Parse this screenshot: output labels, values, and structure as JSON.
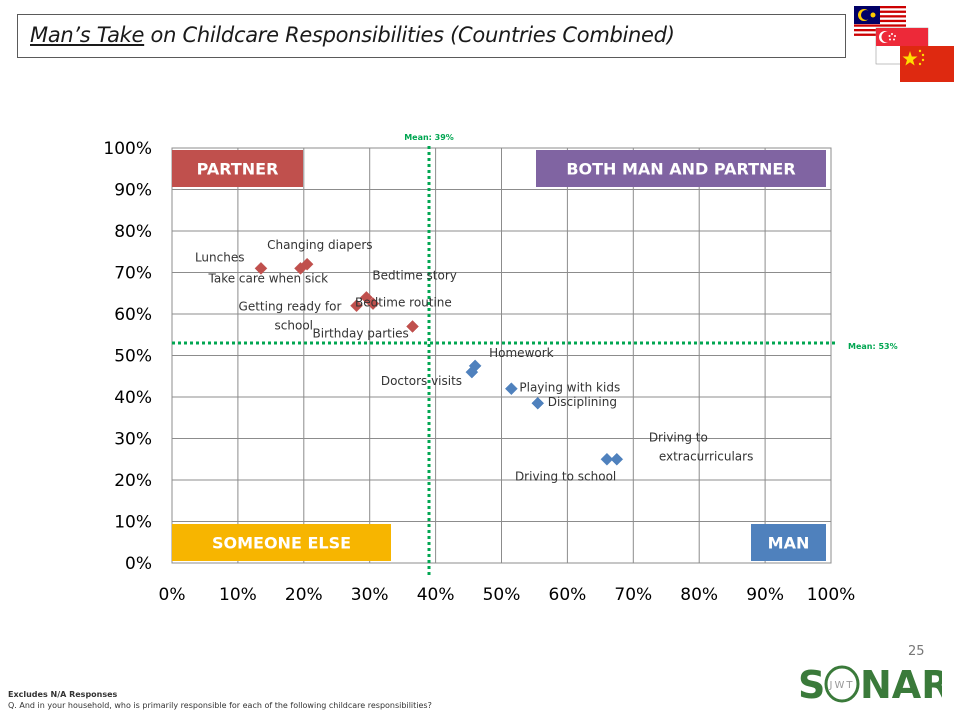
{
  "title": {
    "emphasis": "Man’s Take",
    "rest": " on Childcare Responsibilities (Countries Combined)"
  },
  "page_number": "25",
  "footnotes": {
    "line1": "Excludes N/A Responses",
    "line2": "Q. And in your household, who is primarily responsible for each of the following childcare responsibilities?"
  },
  "logo": {
    "brand": "SONAR",
    "sub": "JWT"
  },
  "flags": [
    "Malaysia",
    "Singapore",
    "China"
  ],
  "colors": {
    "partner_series": "#c0504d",
    "man_series": "#4f81bd",
    "mean_line": "#00a651",
    "partner_box": "#c0504d",
    "both_box": "#8064a2",
    "someone_else_box": "#f7b500",
    "man_box": "#4f81bd",
    "logo_green": "#3a7a3a"
  },
  "chart_data": {
    "type": "scatter",
    "title": "",
    "xlabel": "",
    "ylabel": "",
    "xlim": [
      0,
      100
    ],
    "ylim": [
      0,
      100
    ],
    "x_ticks": [
      "0%",
      "10%",
      "20%",
      "30%",
      "40%",
      "50%",
      "60%",
      "70%",
      "80%",
      "90%",
      "100%"
    ],
    "y_ticks": [
      "0%",
      "10%",
      "20%",
      "30%",
      "40%",
      "50%",
      "60%",
      "70%",
      "80%",
      "90%",
      "100%"
    ],
    "grid": {
      "vertical": true,
      "horizontal": true
    },
    "quadrant_labels": {
      "top_left": "PARTNER",
      "top_right": "BOTH MAN AND PARTNER",
      "bottom_left": "SOMEONE ELSE",
      "bottom_right": "MAN"
    },
    "mean_lines": {
      "x": {
        "value": 39,
        "label": "Mean: 39%"
      },
      "y": {
        "value": 53,
        "label": "Mean: 53%"
      }
    },
    "points": [
      {
        "label": "Lunches",
        "x": 13.5,
        "y": 71,
        "group": "partner"
      },
      {
        "label": "Changing diapers",
        "x": 20.5,
        "y": 72,
        "group": "partner"
      },
      {
        "label": "Take care when sick",
        "x": 19.5,
        "y": 71,
        "group": "partner"
      },
      {
        "label": "Bedtime story",
        "x": 29.5,
        "y": 64,
        "group": "partner"
      },
      {
        "label": "Getting ready for school",
        "x": 28,
        "y": 62,
        "group": "partner"
      },
      {
        "label": "Bedtime routine",
        "x": 30.5,
        "y": 62.5,
        "group": "partner"
      },
      {
        "label": "Birthday parties",
        "x": 36.5,
        "y": 57,
        "group": "partner"
      },
      {
        "label": "Homework",
        "x": 46,
        "y": 47.5,
        "group": "man"
      },
      {
        "label": "Doctors visits",
        "x": 45.5,
        "y": 46,
        "group": "man"
      },
      {
        "label": "Playing with kids",
        "x": 51.5,
        "y": 42,
        "group": "man"
      },
      {
        "label": "Disciplining",
        "x": 55.5,
        "y": 38.5,
        "group": "man"
      },
      {
        "label": "Driving to school",
        "x": 66,
        "y": 25,
        "group": "man"
      },
      {
        "label": "Driving to extracurriculars",
        "x": 67.5,
        "y": 25,
        "group": "man"
      }
    ]
  }
}
